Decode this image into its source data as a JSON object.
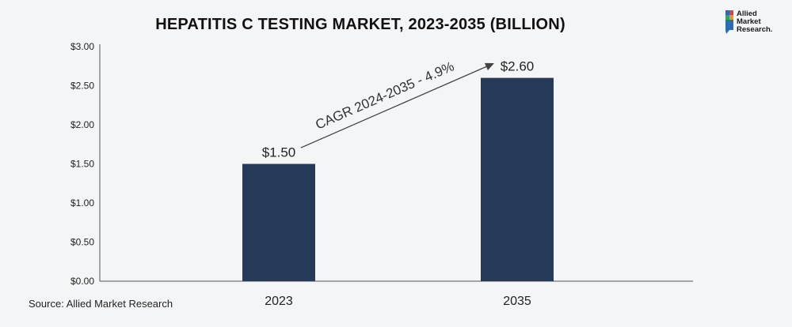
{
  "chart_data": {
    "type": "bar",
    "title": "HEPATITIS C TESTING MARKET, 2023-2035 (BILLION)",
    "categories": [
      "2023",
      "2035"
    ],
    "values": [
      1.5,
      2.6
    ],
    "value_labels": [
      "$1.50",
      "$2.60"
    ],
    "ylim": [
      0,
      3.0
    ],
    "yticks": [
      "$0.00",
      "$0.50",
      "$1.00",
      "$1.50",
      "$2.00",
      "$2.50",
      "$3.00"
    ],
    "grid": false,
    "bar_color": "#253a58",
    "annotation": "CAGR 2024-2035 - 4.9%"
  },
  "logo": {
    "lines": [
      "Allied",
      "Market",
      "Research."
    ]
  },
  "source": "Source: Allied Market Research"
}
